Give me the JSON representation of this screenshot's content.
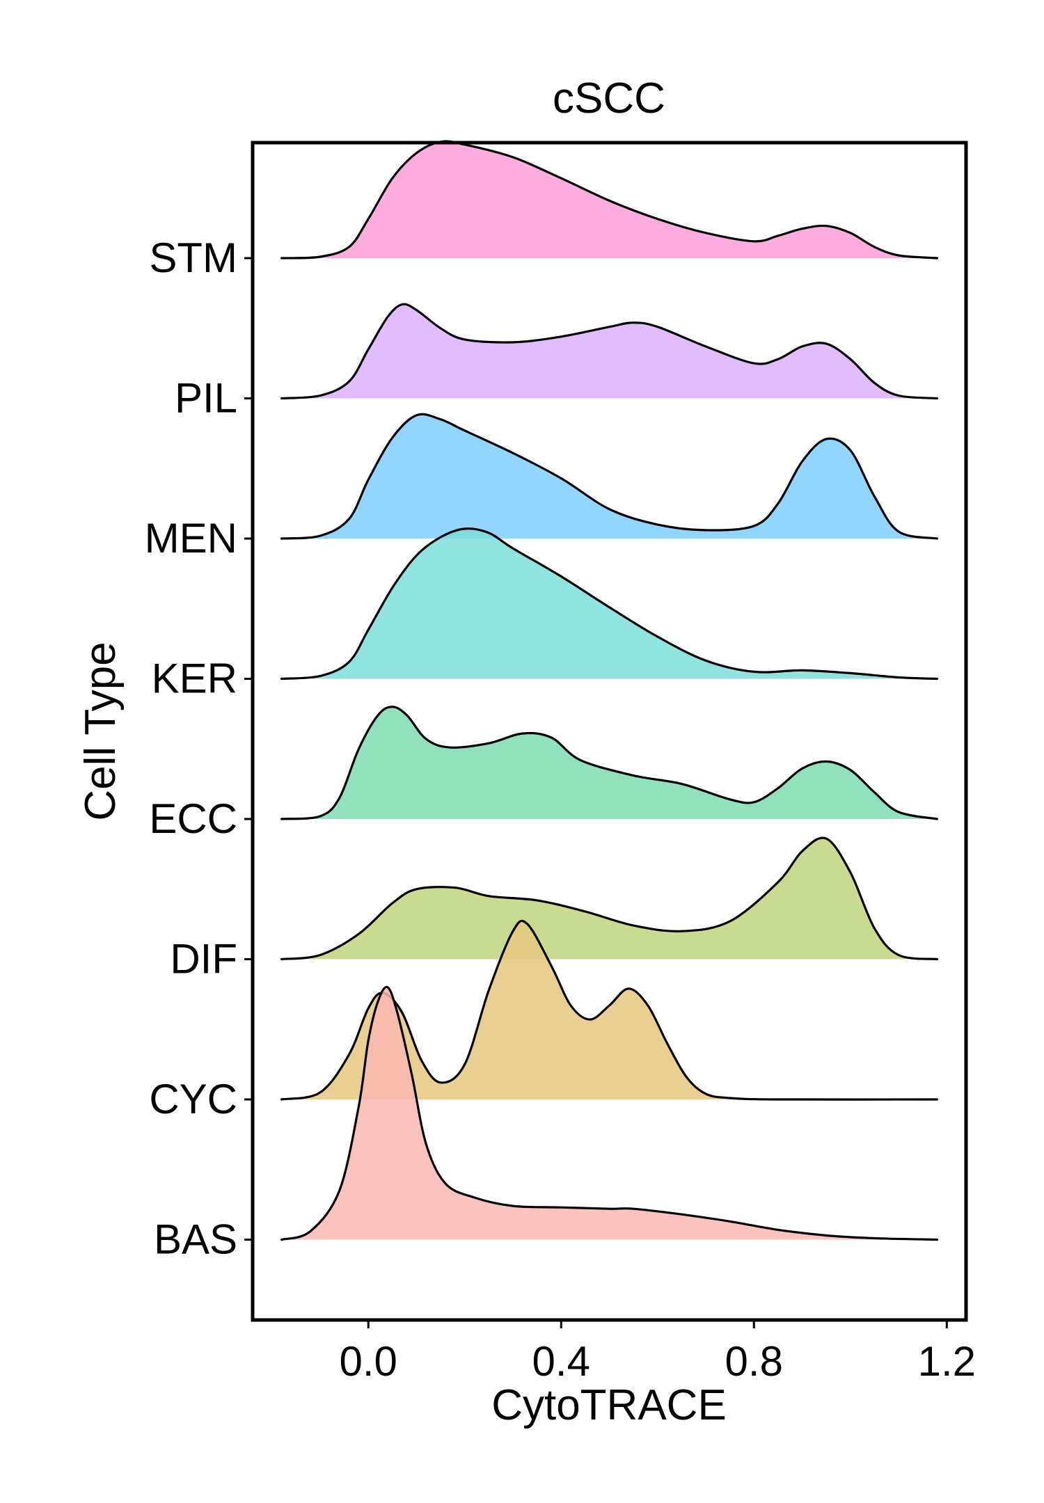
{
  "chart_data": {
    "type": "ridgeline",
    "title": "cSCC",
    "xlabel": "CytoTRACE",
    "ylabel": "Cell Type",
    "xlim": [
      -0.24,
      1.24
    ],
    "xticks": [
      0.0,
      0.4,
      0.8,
      1.2
    ],
    "xtick_labels": [
      "0.0",
      "0.4",
      "0.8",
      "1.2"
    ],
    "curve_x_range": [
      -0.18,
      1.18
    ],
    "y_units_note": "ridge heights in units of the vertical gap between category baselines",
    "series": [
      {
        "name": "STM",
        "color": "#ff9ed8",
        "points": [
          [
            -0.18,
            0
          ],
          [
            -0.1,
            0.01
          ],
          [
            -0.04,
            0.08
          ],
          [
            0.0,
            0.28
          ],
          [
            0.05,
            0.57
          ],
          [
            0.1,
            0.75
          ],
          [
            0.15,
            0.83
          ],
          [
            0.2,
            0.81
          ],
          [
            0.3,
            0.72
          ],
          [
            0.4,
            0.57
          ],
          [
            0.5,
            0.41
          ],
          [
            0.6,
            0.28
          ],
          [
            0.7,
            0.18
          ],
          [
            0.8,
            0.12
          ],
          [
            0.85,
            0.16
          ],
          [
            0.9,
            0.21
          ],
          [
            0.95,
            0.23
          ],
          [
            1.0,
            0.18
          ],
          [
            1.05,
            0.08
          ],
          [
            1.1,
            0.02
          ],
          [
            1.18,
            0
          ]
        ]
      },
      {
        "name": "PIL",
        "color": "#dcb1ff",
        "points": [
          [
            -0.18,
            0
          ],
          [
            -0.1,
            0.02
          ],
          [
            -0.04,
            0.12
          ],
          [
            0.0,
            0.35
          ],
          [
            0.04,
            0.58
          ],
          [
            0.07,
            0.67
          ],
          [
            0.1,
            0.63
          ],
          [
            0.15,
            0.5
          ],
          [
            0.2,
            0.42
          ],
          [
            0.3,
            0.4
          ],
          [
            0.4,
            0.44
          ],
          [
            0.5,
            0.51
          ],
          [
            0.55,
            0.54
          ],
          [
            0.6,
            0.51
          ],
          [
            0.7,
            0.37
          ],
          [
            0.8,
            0.25
          ],
          [
            0.85,
            0.28
          ],
          [
            0.9,
            0.37
          ],
          [
            0.95,
            0.39
          ],
          [
            1.0,
            0.28
          ],
          [
            1.05,
            0.11
          ],
          [
            1.1,
            0.02
          ],
          [
            1.18,
            0
          ]
        ]
      },
      {
        "name": "MEN",
        "color": "#7fcfff",
        "points": [
          [
            -0.18,
            0
          ],
          [
            -0.1,
            0.02
          ],
          [
            -0.04,
            0.14
          ],
          [
            0.0,
            0.42
          ],
          [
            0.05,
            0.72
          ],
          [
            0.1,
            0.88
          ],
          [
            0.15,
            0.85
          ],
          [
            0.2,
            0.77
          ],
          [
            0.3,
            0.61
          ],
          [
            0.4,
            0.43
          ],
          [
            0.5,
            0.21
          ],
          [
            0.6,
            0.1
          ],
          [
            0.7,
            0.06
          ],
          [
            0.8,
            0.09
          ],
          [
            0.85,
            0.25
          ],
          [
            0.9,
            0.55
          ],
          [
            0.95,
            0.71
          ],
          [
            1.0,
            0.63
          ],
          [
            1.05,
            0.3
          ],
          [
            1.1,
            0.05
          ],
          [
            1.18,
            0
          ]
        ]
      },
      {
        "name": "KER",
        "color": "#7dded9",
        "points": [
          [
            -0.18,
            0
          ],
          [
            -0.1,
            0.02
          ],
          [
            -0.04,
            0.12
          ],
          [
            0.0,
            0.35
          ],
          [
            0.05,
            0.65
          ],
          [
            0.1,
            0.88
          ],
          [
            0.15,
            1.01
          ],
          [
            0.2,
            1.07
          ],
          [
            0.25,
            1.04
          ],
          [
            0.3,
            0.93
          ],
          [
            0.4,
            0.73
          ],
          [
            0.5,
            0.51
          ],
          [
            0.6,
            0.3
          ],
          [
            0.7,
            0.13
          ],
          [
            0.8,
            0.05
          ],
          [
            0.9,
            0.06
          ],
          [
            1.0,
            0.04
          ],
          [
            1.1,
            0.01
          ],
          [
            1.18,
            0
          ]
        ]
      },
      {
        "name": "ECC",
        "color": "#7fdcb1",
        "points": [
          [
            -0.18,
            0
          ],
          [
            -0.1,
            0.02
          ],
          [
            -0.06,
            0.15
          ],
          [
            -0.02,
            0.5
          ],
          [
            0.02,
            0.74
          ],
          [
            0.05,
            0.8
          ],
          [
            0.08,
            0.74
          ],
          [
            0.12,
            0.57
          ],
          [
            0.17,
            0.51
          ],
          [
            0.25,
            0.54
          ],
          [
            0.32,
            0.61
          ],
          [
            0.38,
            0.58
          ],
          [
            0.44,
            0.42
          ],
          [
            0.55,
            0.31
          ],
          [
            0.65,
            0.25
          ],
          [
            0.75,
            0.14
          ],
          [
            0.8,
            0.12
          ],
          [
            0.85,
            0.22
          ],
          [
            0.9,
            0.36
          ],
          [
            0.95,
            0.41
          ],
          [
            1.0,
            0.35
          ],
          [
            1.05,
            0.19
          ],
          [
            1.1,
            0.05
          ],
          [
            1.18,
            0
          ]
        ]
      },
      {
        "name": "DIF",
        "color": "#bfd57e",
        "points": [
          [
            -0.18,
            0
          ],
          [
            -0.1,
            0.03
          ],
          [
            -0.02,
            0.18
          ],
          [
            0.05,
            0.4
          ],
          [
            0.1,
            0.5
          ],
          [
            0.18,
            0.51
          ],
          [
            0.25,
            0.45
          ],
          [
            0.35,
            0.42
          ],
          [
            0.45,
            0.34
          ],
          [
            0.55,
            0.24
          ],
          [
            0.65,
            0.2
          ],
          [
            0.75,
            0.27
          ],
          [
            0.85,
            0.55
          ],
          [
            0.9,
            0.77
          ],
          [
            0.95,
            0.86
          ],
          [
            1.0,
            0.62
          ],
          [
            1.05,
            0.22
          ],
          [
            1.1,
            0.03
          ],
          [
            1.18,
            0
          ]
        ]
      },
      {
        "name": "CYC",
        "color": "#e5c77f",
        "points": [
          [
            -0.18,
            0
          ],
          [
            -0.1,
            0.05
          ],
          [
            -0.04,
            0.32
          ],
          [
            0.0,
            0.65
          ],
          [
            0.03,
            0.76
          ],
          [
            0.07,
            0.62
          ],
          [
            0.11,
            0.28
          ],
          [
            0.15,
            0.12
          ],
          [
            0.2,
            0.25
          ],
          [
            0.25,
            0.78
          ],
          [
            0.3,
            1.2
          ],
          [
            0.33,
            1.25
          ],
          [
            0.38,
            0.95
          ],
          [
            0.42,
            0.67
          ],
          [
            0.46,
            0.57
          ],
          [
            0.5,
            0.67
          ],
          [
            0.54,
            0.79
          ],
          [
            0.58,
            0.67
          ],
          [
            0.62,
            0.4
          ],
          [
            0.66,
            0.16
          ],
          [
            0.7,
            0.04
          ],
          [
            0.75,
            0.01
          ],
          [
            0.85,
            0
          ],
          [
            1.18,
            0
          ]
        ]
      },
      {
        "name": "BAS",
        "color": "#f9b8b3",
        "points": [
          [
            -0.18,
            0
          ],
          [
            -0.12,
            0.06
          ],
          [
            -0.06,
            0.35
          ],
          [
            -0.02,
            0.95
          ],
          [
            0.0,
            1.42
          ],
          [
            0.02,
            1.7
          ],
          [
            0.04,
            1.8
          ],
          [
            0.06,
            1.62
          ],
          [
            0.09,
            1.18
          ],
          [
            0.12,
            0.68
          ],
          [
            0.16,
            0.4
          ],
          [
            0.22,
            0.3
          ],
          [
            0.3,
            0.24
          ],
          [
            0.4,
            0.23
          ],
          [
            0.5,
            0.22
          ],
          [
            0.55,
            0.22
          ],
          [
            0.65,
            0.18
          ],
          [
            0.75,
            0.13
          ],
          [
            0.85,
            0.07
          ],
          [
            0.95,
            0.03
          ],
          [
            1.05,
            0.01
          ],
          [
            1.18,
            0
          ]
        ]
      }
    ]
  }
}
